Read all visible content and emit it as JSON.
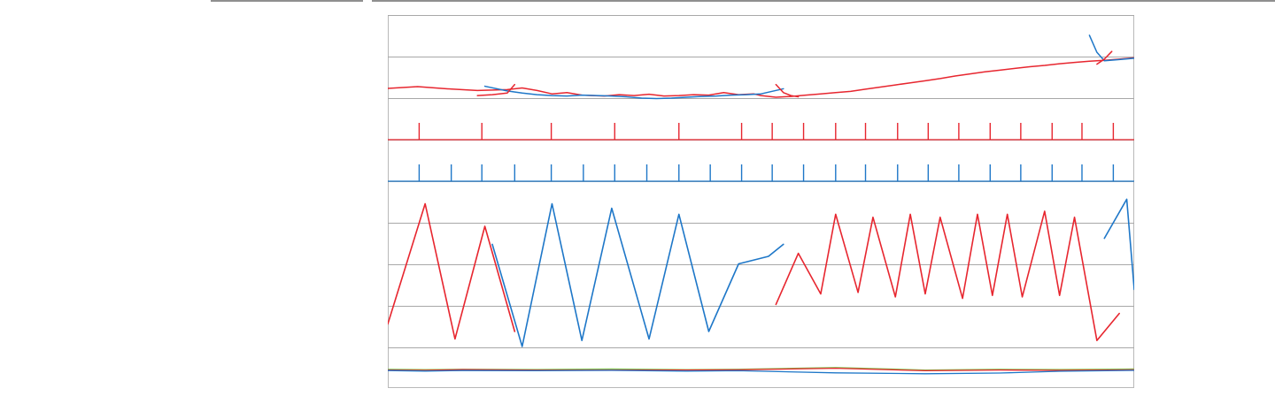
{
  "chart_data": {
    "type": "line",
    "title": "",
    "xlabel": "",
    "ylabel": "",
    "grid": true,
    "colors": {
      "red": "#e7262f",
      "blue": "#1e77c8",
      "green": "#86c556",
      "orange": "#f39a2b",
      "grid": "#a8a8a8"
    },
    "panels": [
      {
        "kind": "trend",
        "series": [
          {
            "name": "",
            "color": "#e7262f",
            "points": [
              [
                0,
                0.73
              ],
              [
                0.04,
                0.77
              ],
              [
                0.08,
                0.72
              ],
              [
                0.12,
                0.68
              ],
              [
                0.16,
                0.7
              ],
              [
                0.18,
                0.74
              ],
              [
                0.2,
                0.68
              ],
              [
                0.22,
                0.6
              ],
              [
                0.24,
                0.63
              ],
              [
                0.26,
                0.57
              ],
              [
                0.29,
                0.55
              ],
              [
                0.31,
                0.58
              ],
              [
                0.33,
                0.56
              ],
              [
                0.35,
                0.59
              ],
              [
                0.37,
                0.55
              ],
              [
                0.39,
                0.56
              ],
              [
                0.41,
                0.58
              ],
              [
                0.43,
                0.57
              ],
              [
                0.45,
                0.63
              ],
              [
                0.47,
                0.58
              ],
              [
                0.49,
                0.6
              ],
              [
                0.5,
                0.56
              ],
              [
                0.52,
                0.52
              ],
              [
                0.54,
                0.54
              ],
              [
                0.56,
                0.57
              ],
              [
                0.58,
                0.6
              ],
              [
                0.6,
                0.63
              ],
              [
                0.62,
                0.66
              ],
              [
                0.64,
                0.71
              ],
              [
                0.66,
                0.76
              ],
              [
                0.68,
                0.81
              ],
              [
                0.7,
                0.86
              ],
              [
                0.72,
                0.91
              ],
              [
                0.74,
                0.96
              ],
              [
                0.76,
                1.02
              ],
              [
                0.78,
                1.07
              ],
              [
                0.8,
                1.12
              ],
              [
                0.82,
                1.16
              ],
              [
                0.84,
                1.2
              ],
              [
                0.86,
                1.24
              ],
              [
                0.88,
                1.27
              ],
              [
                0.9,
                1.31
              ],
              [
                0.92,
                1.34
              ],
              [
                0.94,
                1.37
              ],
              [
                0.96,
                1.39
              ],
              [
                0.98,
                1.42
              ],
              [
                1.0,
                1.45
              ]
            ]
          },
          {
            "name": "",
            "color": "#1e77c8",
            "points": [
              [
                0.13,
                0.78
              ],
              [
                0.16,
                0.67
              ],
              [
                0.18,
                0.62
              ],
              [
                0.2,
                0.58
              ],
              [
                0.22,
                0.56
              ],
              [
                0.24,
                0.55
              ],
              [
                0.26,
                0.57
              ],
              [
                0.28,
                0.56
              ],
              [
                0.3,
                0.55
              ],
              [
                0.32,
                0.53
              ],
              [
                0.34,
                0.5
              ],
              [
                0.36,
                0.49
              ],
              [
                0.38,
                0.5
              ],
              [
                0.4,
                0.52
              ],
              [
                0.42,
                0.54
              ],
              [
                0.44,
                0.55
              ],
              [
                0.46,
                0.57
              ],
              [
                0.48,
                0.58
              ],
              [
                0.5,
                0.6
              ],
              [
                0.53,
                0.72
              ]
            ]
          },
          {
            "name": "",
            "color": "#1e77c8",
            "points": [
              [
                0.94,
                1.98
              ],
              [
                0.95,
                1.58
              ],
              [
                0.96,
                1.38
              ],
              [
                0.98,
                1.41
              ],
              [
                1.0,
                1.44
              ]
            ]
          },
          {
            "name": "",
            "color": "#e7262f",
            "points": [
              [
                0.95,
                1.3
              ],
              [
                0.96,
                1.42
              ],
              [
                0.97,
                1.6
              ]
            ]
          },
          {
            "name": "",
            "color": "#e7262f",
            "points": [
              [
                0.12,
                0.56
              ],
              [
                0.14,
                0.58
              ],
              [
                0.16,
                0.62
              ],
              [
                0.17,
                0.82
              ]
            ]
          },
          {
            "name": "",
            "color": "#e7262f",
            "points": [
              [
                0.52,
                0.82
              ],
              [
                0.53,
                0.63
              ],
              [
                0.54,
                0.56
              ],
              [
                0.55,
                0.53
              ]
            ]
          }
        ]
      },
      {
        "kind": "events",
        "series": [
          {
            "name": "",
            "color": "#e7262f",
            "baseline": 1,
            "positions": [
              0.042,
              0.126,
              0.219,
              0.304,
              0.39,
              0.474,
              0.515,
              0.557,
              0.6,
              0.64,
              0.683,
              0.724,
              0.765,
              0.807,
              0.848,
              0.89,
              0.93,
              0.972
            ]
          },
          {
            "name": "",
            "color": "#1e77c8",
            "baseline": 0,
            "positions": [
              0.042,
              0.085,
              0.126,
              0.17,
              0.219,
              0.262,
              0.304,
              0.347,
              0.39,
              0.432,
              0.474,
              0.515,
              0.557,
              0.6,
              0.64,
              0.683,
              0.724,
              0.765,
              0.807,
              0.848,
              0.89,
              0.93,
              0.972
            ]
          }
        ]
      },
      {
        "kind": "waves",
        "series": [
          {
            "name": "",
            "color": "#e7262f",
            "points": [
              [
                0.0,
                0.15
              ],
              [
                0.05,
                0.95
              ],
              [
                0.09,
                0.05
              ],
              [
                0.13,
                0.8
              ],
              [
                0.17,
                0.1
              ]
            ]
          },
          {
            "name": "",
            "color": "#1e77c8",
            "points": [
              [
                0.14,
                0.68
              ],
              [
                0.18,
                0.0
              ],
              [
                0.22,
                0.95
              ],
              [
                0.26,
                0.04
              ],
              [
                0.3,
                0.92
              ],
              [
                0.35,
                0.05
              ],
              [
                0.39,
                0.88
              ],
              [
                0.43,
                0.1
              ],
              [
                0.47,
                0.55
              ],
              [
                0.51,
                0.6
              ],
              [
                0.53,
                0.68
              ]
            ]
          },
          {
            "name": "",
            "color": "#e7262f",
            "points": [
              [
                0.52,
                0.28
              ],
              [
                0.55,
                0.62
              ],
              [
                0.58,
                0.35
              ],
              [
                0.6,
                0.88
              ],
              [
                0.63,
                0.36
              ],
              [
                0.65,
                0.86
              ],
              [
                0.68,
                0.33
              ],
              [
                0.7,
                0.88
              ],
              [
                0.72,
                0.35
              ],
              [
                0.74,
                0.86
              ],
              [
                0.77,
                0.32
              ],
              [
                0.79,
                0.88
              ],
              [
                0.81,
                0.34
              ],
              [
                0.83,
                0.88
              ],
              [
                0.85,
                0.33
              ],
              [
                0.88,
                0.9
              ],
              [
                0.9,
                0.34
              ],
              [
                0.92,
                0.86
              ],
              [
                0.95,
                0.04
              ],
              [
                0.98,
                0.22
              ]
            ]
          },
          {
            "name": "",
            "color": "#1e77c8",
            "points": [
              [
                0.96,
                0.72
              ],
              [
                0.99,
                0.98
              ],
              [
                1.0,
                0.38
              ]
            ]
          }
        ]
      },
      {
        "kind": "bands",
        "series": [
          {
            "name": "",
            "color": "#86c556",
            "points": [
              [
                0.0,
                0.56
              ],
              [
                0.05,
                0.54
              ],
              [
                0.1,
                0.56
              ],
              [
                0.2,
                0.55
              ],
              [
                0.3,
                0.58
              ],
              [
                0.4,
                0.54
              ],
              [
                0.47,
                0.56
              ],
              [
                0.6,
                0.66
              ],
              [
                0.72,
                0.52
              ],
              [
                0.82,
                0.56
              ],
              [
                0.9,
                0.55
              ],
              [
                1.0,
                0.58
              ]
            ]
          },
          {
            "name": "",
            "color": "#e7262f",
            "points": [
              [
                0.0,
                0.52
              ],
              [
                0.05,
                0.5
              ],
              [
                0.1,
                0.54
              ],
              [
                0.2,
                0.51
              ],
              [
                0.3,
                0.52
              ],
              [
                0.4,
                0.52
              ],
              [
                0.47,
                0.53
              ],
              [
                0.6,
                0.62
              ],
              [
                0.72,
                0.48
              ],
              [
                0.82,
                0.52
              ],
              [
                0.9,
                0.5
              ],
              [
                1.0,
                0.53
              ]
            ]
          },
          {
            "name": "",
            "color": "#1e77c8",
            "points": [
              [
                0.0,
                0.49
              ],
              [
                0.05,
                0.46
              ],
              [
                0.1,
                0.49
              ],
              [
                0.2,
                0.48
              ],
              [
                0.3,
                0.5
              ],
              [
                0.4,
                0.46
              ],
              [
                0.47,
                0.48
              ],
              [
                0.6,
                0.36
              ],
              [
                0.72,
                0.31
              ],
              [
                0.82,
                0.35
              ],
              [
                0.9,
                0.45
              ],
              [
                1.0,
                0.5
              ]
            ]
          }
        ]
      }
    ]
  }
}
